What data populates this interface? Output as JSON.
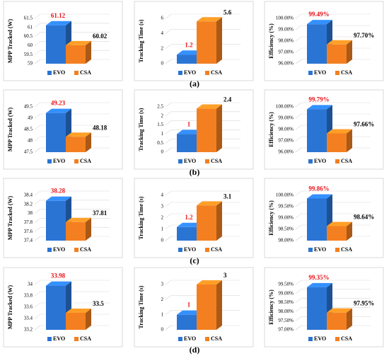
{
  "chart_data": [
    {
      "type": "bar",
      "ylabel": "MPP Tracked (W)",
      "ylim": [
        59,
        61.5
      ],
      "yticks": [
        59,
        59.5,
        60,
        60.5,
        61,
        61.5
      ],
      "grid": true,
      "series": [
        {
          "name": "EVO",
          "color": "#2a74d4",
          "label_color": "#e8141b",
          "values": [
            61.12
          ]
        },
        {
          "name": "CSA",
          "color": "#f47f20",
          "label_color": "#000000",
          "values": [
            60.02
          ]
        }
      ]
    },
    {
      "type": "bar",
      "ylabel": "Tracking Time (s)",
      "ylim": [
        0,
        6
      ],
      "yticks": [
        0,
        2,
        4,
        6
      ],
      "grid": true,
      "series": [
        {
          "name": "EVO",
          "color": "#2a74d4",
          "label_color": "#e8141b",
          "values": [
            1.2
          ]
        },
        {
          "name": "CSA",
          "color": "#f47f20",
          "label_color": "#000000",
          "values": [
            5.6
          ]
        }
      ]
    },
    {
      "type": "bar",
      "ylabel": "Efficiency (%)",
      "ylim": [
        96,
        100
      ],
      "yticks": [
        {
          "value": 96,
          "label": "96.00%"
        },
        {
          "value": 97,
          "label": "97.00%"
        },
        {
          "value": 98,
          "label": "98.00%"
        },
        {
          "value": 99,
          "label": "99.00%"
        },
        {
          "value": 100,
          "label": "100.00%"
        }
      ],
      "grid": true,
      "series": [
        {
          "name": "EVO",
          "color": "#2a74d4",
          "label_color": "#e8141b",
          "values": [
            99.49
          ],
          "value_labels": [
            "99.49%"
          ]
        },
        {
          "name": "CSA",
          "color": "#f47f20",
          "label_color": "#000000",
          "values": [
            97.7
          ],
          "value_labels": [
            "97.70%"
          ]
        }
      ]
    },
    {
      "type": "bar",
      "ylabel": "MPP Tracked (W)",
      "ylim": [
        47.5,
        49.5
      ],
      "yticks": [
        47.5,
        48,
        48.5,
        49,
        49.5
      ],
      "grid": true,
      "series": [
        {
          "name": "EVO",
          "color": "#2a74d4",
          "label_color": "#e8141b",
          "values": [
            49.23
          ]
        },
        {
          "name": "CSA",
          "color": "#f47f20",
          "label_color": "#000000",
          "values": [
            48.18
          ]
        }
      ]
    },
    {
      "type": "bar",
      "ylabel": "Tracking Time  (s)",
      "ylim": [
        0,
        2.5
      ],
      "yticks": [
        0,
        0.5,
        1,
        1.5,
        2,
        2.5
      ],
      "grid": true,
      "series": [
        {
          "name": "EVO",
          "color": "#2a74d4",
          "label_color": "#e8141b",
          "values": [
            1
          ]
        },
        {
          "name": "CSA",
          "color": "#f47f20",
          "label_color": "#000000",
          "values": [
            2.4
          ]
        }
      ]
    },
    {
      "type": "bar",
      "ylabel": "Efficiency (%)",
      "ylim": [
        96,
        100
      ],
      "yticks": [
        {
          "value": 96,
          "label": "96.00%"
        },
        {
          "value": 97,
          "label": "97.00%"
        },
        {
          "value": 98,
          "label": "98.00%"
        },
        {
          "value": 99,
          "label": "99.00%"
        },
        {
          "value": 100,
          "label": "100.00%"
        }
      ],
      "grid": true,
      "series": [
        {
          "name": "EVO",
          "color": "#2a74d4",
          "label_color": "#e8141b",
          "values": [
            99.79
          ],
          "value_labels": [
            "99.79%"
          ]
        },
        {
          "name": "CSA",
          "color": "#f47f20",
          "label_color": "#000000",
          "values": [
            97.66
          ],
          "value_labels": [
            "97.66%"
          ]
        }
      ]
    },
    {
      "type": "bar",
      "ylabel": "MPP Tracked (W)",
      "ylim": [
        37.4,
        38.4
      ],
      "yticks": [
        37.4,
        37.6,
        37.8,
        38,
        38.2,
        38.4
      ],
      "grid": true,
      "series": [
        {
          "name": "EVO",
          "color": "#2a74d4",
          "label_color": "#e8141b",
          "values": [
            38.28
          ]
        },
        {
          "name": "CSA",
          "color": "#f47f20",
          "label_color": "#000000",
          "values": [
            37.81
          ]
        }
      ]
    },
    {
      "type": "bar",
      "ylabel": "Tracking Time (s)",
      "ylim": [
        0,
        4
      ],
      "yticks": [
        0,
        1,
        2,
        3,
        4
      ],
      "grid": true,
      "series": [
        {
          "name": "EVO",
          "color": "#2a74d4",
          "label_color": "#e8141b",
          "values": [
            1.2
          ]
        },
        {
          "name": "CSA",
          "color": "#f47f20",
          "label_color": "#000000",
          "values": [
            3.1
          ]
        }
      ]
    },
    {
      "type": "bar",
      "ylabel": "Efficiency (%)",
      "ylim": [
        98,
        100
      ],
      "yticks": [
        {
          "value": 98,
          "label": "98.00%"
        },
        {
          "value": 98.5,
          "label": "98.50%"
        },
        {
          "value": 99,
          "label": "99.00%"
        },
        {
          "value": 99.5,
          "label": "99.50%"
        },
        {
          "value": 100,
          "label": "100.00%"
        }
      ],
      "grid": true,
      "series": [
        {
          "name": "EVO",
          "color": "#2a74d4",
          "label_color": "#e8141b",
          "values": [
            99.86
          ],
          "value_labels": [
            "99.86%"
          ]
        },
        {
          "name": "CSA",
          "color": "#f47f20",
          "label_color": "#000000",
          "values": [
            98.64
          ],
          "value_labels": [
            "98.64%"
          ]
        }
      ]
    },
    {
      "type": "bar",
      "ylabel": "MPP Tracked (W)",
      "ylim": [
        33.2,
        34
      ],
      "yticks": [
        33.2,
        33.4,
        33.6,
        33.8,
        34
      ],
      "grid": true,
      "series": [
        {
          "name": "EVO",
          "color": "#2a74d4",
          "label_color": "#e8141b",
          "values": [
            33.98
          ]
        },
        {
          "name": "CSA",
          "color": "#f47f20",
          "label_color": "#000000",
          "values": [
            33.5
          ]
        }
      ]
    },
    {
      "type": "bar",
      "ylabel": "Tracking Time (s)",
      "ylim": [
        0,
        3
      ],
      "yticks": [
        0,
        1,
        2,
        3
      ],
      "grid": true,
      "series": [
        {
          "name": "EVO",
          "color": "#2a74d4",
          "label_color": "#e8141b",
          "values": [
            1
          ]
        },
        {
          "name": "CSA",
          "color": "#f47f20",
          "label_color": "#000000",
          "values": [
            3
          ]
        }
      ]
    },
    {
      "type": "bar",
      "ylabel": "Efficiency (%)",
      "ylim": [
        97,
        99.5
      ],
      "yticks": [
        {
          "value": 97,
          "label": "97.00%"
        },
        {
          "value": 97.5,
          "label": "97.50%"
        },
        {
          "value": 98,
          "label": "98.00%"
        },
        {
          "value": 98.5,
          "label": "98.50%"
        },
        {
          "value": 99,
          "label": "99.00%"
        },
        {
          "value": 99.5,
          "label": "99.50%"
        }
      ],
      "grid": true,
      "series": [
        {
          "name": "EVO",
          "color": "#2a74d4",
          "label_color": "#e8141b",
          "values": [
            99.35
          ],
          "value_labels": [
            "99.35%"
          ]
        },
        {
          "name": "CSA",
          "color": "#f47f20",
          "label_color": "#000000",
          "values": [
            97.95
          ],
          "value_labels": [
            "97.95%"
          ]
        }
      ]
    }
  ],
  "panel_labels": [
    "(a)",
    "(b)",
    "(c)",
    "(d)"
  ]
}
